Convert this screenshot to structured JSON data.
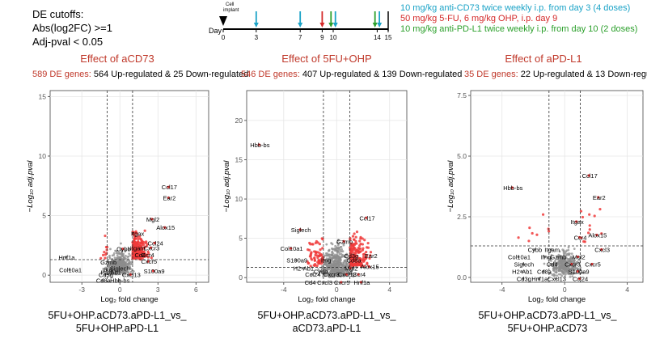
{
  "cutoffs": {
    "title": "DE cutoffs:",
    "line1": "Abs(log2FC) >=1",
    "line2": "Adj-pval < 0.05"
  },
  "timeline": {
    "day_label": "Day",
    "cell_implant_label": "Cell\nimplant",
    "ticks": [
      0,
      3,
      7,
      9,
      10,
      14,
      15
    ],
    "max_day": 15,
    "arrows": [
      {
        "day": 3,
        "group": "antiCD73"
      },
      {
        "day": 7,
        "group": "antiCD73"
      },
      {
        "day": 9,
        "group": "chemo"
      },
      {
        "day": 9.8,
        "group": "antiPDL1"
      },
      {
        "day": 10.2,
        "group": "antiCD73"
      },
      {
        "day": 13.8,
        "group": "antiPDL1"
      },
      {
        "day": 14.2,
        "group": "antiCD73"
      }
    ],
    "colors": {
      "antiCD73": "#1ba3c7",
      "chemo": "#d42a2a",
      "antiPDL1": "#2ca02c",
      "implant": "#000000"
    },
    "legend": [
      {
        "text": "10 mg/kg anti-CD73 twice weekly i.p. from day 3 (4 doses)",
        "color": "#1ba3c7"
      },
      {
        "text": "50 mg/kg 5-FU, 6 mg/kg OHP, i.p. day 9",
        "color": "#d42a2a"
      },
      {
        "text": "10 mg/kg anti-PD-L1 twice weekly i.p. from day 10 (2 doses)",
        "color": "#2ca02c"
      }
    ]
  },
  "colors": {
    "title_red": "#c0392b",
    "de_point": "#f03b3b",
    "ns_point": "#8c8c8c",
    "grid": "#e6e6e6",
    "panel_border": "#333333"
  },
  "chart_data": [
    {
      "type": "scatter",
      "title": "Effect of aCD73",
      "de_count_label": "589 DE genes:",
      "summary": " 564 Up-regulated & 25 Down-regulated",
      "xlabel": "Log₂ fold change",
      "ylabel": "−Log₁₀ adj.pval",
      "xlim": [
        -5.5,
        7
      ],
      "ylim": [
        -0.6,
        15.5
      ],
      "xticks": [
        -3,
        0,
        3,
        6
      ],
      "yticks": [
        0,
        5,
        10,
        15
      ],
      "vlines": [
        -1,
        1
      ],
      "hline": 1.3,
      "comparison_line1": "5FU+OHP.aCD73.aPD-L1_vs_",
      "comparison_line2": "5FU+OHP.aPD-L1",
      "labels": [
        {
          "gene": "Ccl17",
          "x": 3.9,
          "y": 7.2
        },
        {
          "gene": "Ear2",
          "x": 3.9,
          "y": 6.3
        },
        {
          "gene": "Mgl2",
          "x": 2.6,
          "y": 4.5
        },
        {
          "gene": "Itgax",
          "x": 1.4,
          "y": 3.3
        },
        {
          "gene": "Alox15",
          "x": 3.6,
          "y": 3.8
        },
        {
          "gene": "Ccl24",
          "x": 2.8,
          "y": 2.5
        },
        {
          "gene": "Cybb",
          "x": 0.3,
          "y": 2.0
        },
        {
          "gene": "Itgam",
          "x": 1.4,
          "y": 2.1
        },
        {
          "gene": "Cxcr3",
          "x": 2.5,
          "y": 2.1
        },
        {
          "gene": "Cd4",
          "x": 1.6,
          "y": 1.5
        },
        {
          "gene": "Ccr4",
          "x": 2.2,
          "y": 1.5
        },
        {
          "gene": "Cxcr5",
          "x": 2.3,
          "y": 0.95
        },
        {
          "gene": "S100a9",
          "x": 2.7,
          "y": 0.15
        },
        {
          "gene": "Hnf1a",
          "x": -4.2,
          "y": 1.3
        },
        {
          "gene": "Col10a1",
          "x": -3.9,
          "y": 0.25
        },
        {
          "gene": "Cxcl13",
          "x": 0.9,
          "y": -0.15
        },
        {
          "gene": "Siglech",
          "x": 0.0,
          "y": 0.4
        },
        {
          "gene": "H2-Ab1",
          "x": -0.7,
          "y": 0.05
        },
        {
          "gene": "Itng",
          "x": -1.0,
          "y": 0.3
        },
        {
          "gene": "Cd8a",
          "x": -1.3,
          "y": -0.65
        },
        {
          "gene": "Hbb-bs",
          "x": 0.0,
          "y": -0.65
        },
        {
          "gene": "Gzmb",
          "x": -0.9,
          "y": 0.9
        },
        {
          "gene": "Cd3g",
          "x": -1.1,
          "y": -0.15
        }
      ]
    },
    {
      "type": "scatter",
      "title": "Effect of 5FU+OHP",
      "de_count_label": "546 DE genes:",
      "summary": " 407 Up-regulated & 139 Down-regulated",
      "xlabel": "Log₂ fold change",
      "ylabel": "−Log₁₀ adj.pval",
      "xlim": [
        -6.8,
        5.3
      ],
      "ylim": [
        -0.6,
        23.8
      ],
      "xticks": [
        -4,
        0,
        4
      ],
      "yticks": [
        0,
        5,
        10,
        15,
        20
      ],
      "vlines": [
        -1,
        1
      ],
      "hline": 1.3,
      "comparison_line1": "5FU+OHP.aCD73.aPD-L1_vs_",
      "comparison_line2": "aCD73.aPD-L1",
      "labels": [
        {
          "gene": "Hbb-bs",
          "x": -5.8,
          "y": 16.6
        },
        {
          "gene": "Ccl17",
          "x": 2.3,
          "y": 7.3
        },
        {
          "gene": "Siglech",
          "x": -2.7,
          "y": 5.8
        },
        {
          "gene": "Gzmb",
          "x": 0.6,
          "y": 4.3
        },
        {
          "gene": "Col10a1",
          "x": -3.4,
          "y": 3.4
        },
        {
          "gene": "Cd3g",
          "x": 1.1,
          "y": 2.5
        },
        {
          "gene": "Ear2",
          "x": 2.6,
          "y": 2.5
        },
        {
          "gene": "S100a9",
          "x": -3.0,
          "y": 1.9
        },
        {
          "gene": "Cd8a",
          "x": 1.3,
          "y": 1.9
        },
        {
          "gene": "Itng",
          "x": -0.8,
          "y": 1.9
        },
        {
          "gene": "Alox15",
          "x": 2.5,
          "y": 1.1
        },
        {
          "gene": "H2-Ab1",
          "x": -2.5,
          "y": 0.9
        },
        {
          "gene": "Cybb",
          "x": -1.2,
          "y": 0.5
        },
        {
          "gene": "Mgl2",
          "x": 1.1,
          "y": 0.9
        },
        {
          "gene": "Ccl24",
          "x": -1.8,
          "y": 0.1
        },
        {
          "gene": "Cxcr3",
          "x": -0.4,
          "y": 0.1
        },
        {
          "gene": "Cxcl13",
          "x": 0.8,
          "y": 0.1
        },
        {
          "gene": "Ccr4",
          "x": 1.7,
          "y": 0.1
        },
        {
          "gene": "Cd4",
          "x": -2.0,
          "y": -0.9
        },
        {
          "gene": "Cxcl3",
          "x": -0.9,
          "y": -0.9
        },
        {
          "gene": "Cxcr5",
          "x": 0.4,
          "y": -0.9
        },
        {
          "gene": "Hnf1a",
          "x": 1.9,
          "y": -0.9
        }
      ]
    },
    {
      "type": "scatter",
      "title": "Effect of aPD-L1",
      "de_count_label": "35 DE genes:",
      "summary": " 22 Up-regulated & 13 Down-regulated",
      "xlabel": "Log₂ fold change",
      "ylabel": "−Log₁₀ adj.pval",
      "xlim": [
        -6,
        5
      ],
      "ylim": [
        -0.2,
        7.7
      ],
      "xticks": [
        -4,
        0,
        4
      ],
      "yticks": [
        0.0,
        2.5,
        5.0,
        7.5
      ],
      "vlines": [
        -1,
        1
      ],
      "hline": 1.3,
      "comparison_line1": "5FU+OHP.aCD73.aPD-L1_vs_",
      "comparison_line2": "5FU+OHP.aCD73",
      "labels": [
        {
          "gene": "Ccl17",
          "x": 1.6,
          "y": 4.1
        },
        {
          "gene": "Hbb-bs",
          "x": -3.3,
          "y": 3.6
        },
        {
          "gene": "Ear2",
          "x": 2.2,
          "y": 3.2
        },
        {
          "gene": "Itgax",
          "x": 0.8,
          "y": 2.2
        },
        {
          "gene": "Alox15",
          "x": 2.1,
          "y": 1.65
        },
        {
          "gene": "Ccr4",
          "x": 1.0,
          "y": 1.55
        },
        {
          "gene": "Cybb",
          "x": -1.9,
          "y": 1.05
        },
        {
          "gene": "Itgam",
          "x": -0.8,
          "y": 1.05
        },
        {
          "gene": "Cxcl3",
          "x": 2.4,
          "y": 1.05
        },
        {
          "gene": "Col10a1",
          "x": -2.9,
          "y": 0.75
        },
        {
          "gene": "Ifng",
          "x": -1.2,
          "y": 0.75
        },
        {
          "gene": "Gzmb",
          "x": -0.4,
          "y": 0.75
        },
        {
          "gene": "Mgl2",
          "x": 0.9,
          "y": 0.75
        },
        {
          "gene": "Siglech",
          "x": -2.6,
          "y": 0.45
        },
        {
          "gene": "Cd4",
          "x": -0.8,
          "y": 0.45
        },
        {
          "gene": "Cxcr3",
          "x": 0.5,
          "y": 0.45
        },
        {
          "gene": "Cxcr5",
          "x": 1.8,
          "y": 0.45
        },
        {
          "gene": "H2-Ab1",
          "x": -2.7,
          "y": 0.15
        },
        {
          "gene": "Cd8a",
          "x": -1.3,
          "y": 0.15
        },
        {
          "gene": "S100a9",
          "x": 0.9,
          "y": 0.15
        },
        {
          "gene": "Cd3g",
          "x": -2.6,
          "y": -0.15
        },
        {
          "gene": "Hnf1a",
          "x": -1.6,
          "y": -0.15
        },
        {
          "gene": "Cxcl13",
          "x": -0.5,
          "y": -0.15
        },
        {
          "gene": "Ccl24",
          "x": 1.0,
          "y": -0.15
        }
      ]
    }
  ]
}
